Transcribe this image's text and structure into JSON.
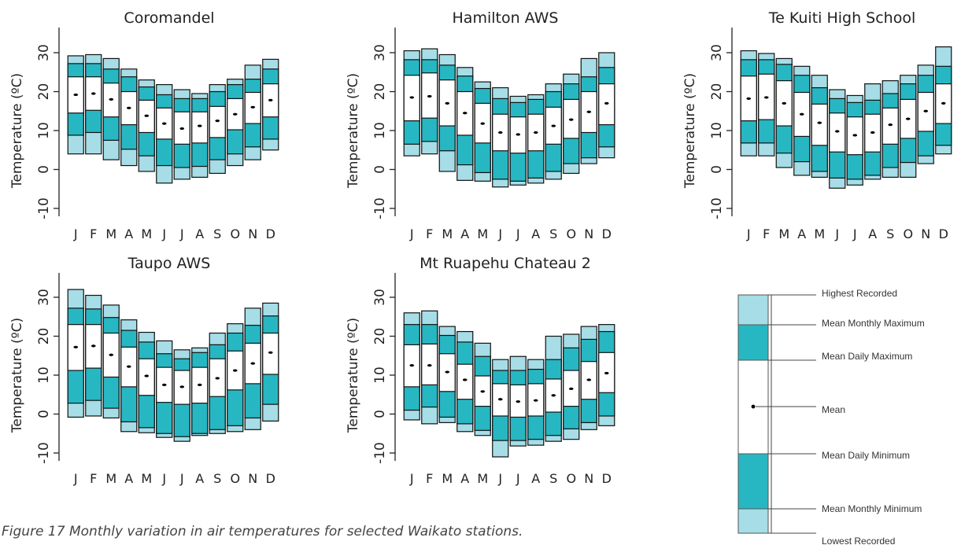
{
  "caption": "Figure 17 Monthly variation in air temperatures for selected Waikato stations.",
  "colors": {
    "record_band": "#a6dde6",
    "monthly_band": "#27b7c2",
    "daily_band": "#ffffff",
    "outline": "#111111",
    "mean_marker": "#000000"
  },
  "legend": {
    "labels": [
      "Highest Recorded",
      "Mean Monthly Maximum",
      "Mean Daily Maximum",
      "Mean",
      "Mean Daily Minimum",
      "Mean Monthly Minimum",
      "Lowest Recorded"
    ]
  },
  "chart_data": [
    {
      "type": "box",
      "title": "Coromandel",
      "ylabel": "Temperature (ºC)",
      "ylim": [
        -10,
        35
      ],
      "yticks": [
        "-10",
        "0",
        "10",
        "20",
        "30"
      ],
      "categories": [
        "J",
        "F",
        "M",
        "A",
        "M",
        "J",
        "J",
        "A",
        "S",
        "O",
        "N",
        "D"
      ],
      "highest_recorded": [
        29.2,
        29.5,
        28.5,
        25.8,
        23.0,
        21.8,
        20.5,
        19.5,
        21.8,
        23.2,
        26.8,
        28.3
      ],
      "mean_monthly_max": [
        27.2,
        27.2,
        25.8,
        23.8,
        21.2,
        19.2,
        18.2,
        18.2,
        20.0,
        21.8,
        23.2,
        25.8
      ],
      "mean_daily_max": [
        23.8,
        23.8,
        22.2,
        20.0,
        17.8,
        15.8,
        14.8,
        14.8,
        16.2,
        18.2,
        19.8,
        22.0
      ],
      "mean": [
        19.2,
        19.5,
        18.0,
        15.8,
        13.8,
        11.8,
        10.5,
        11.2,
        12.5,
        14.2,
        16.0,
        17.8
      ],
      "mean_daily_min": [
        14.5,
        15.2,
        13.5,
        11.5,
        9.5,
        7.8,
        6.5,
        6.8,
        8.2,
        10.2,
        11.8,
        13.5
      ],
      "mean_monthly_min": [
        8.8,
        9.5,
        7.5,
        5.2,
        3.5,
        1.0,
        0.5,
        0.8,
        2.5,
        4.0,
        5.8,
        7.8
      ],
      "lowest_recorded": [
        4.0,
        4.0,
        2.5,
        1.0,
        -0.5,
        -3.5,
        -2.5,
        -2.0,
        -1.0,
        1.0,
        2.5,
        5.0
      ]
    },
    {
      "type": "box",
      "title": "Hamilton AWS",
      "ylabel": "Temperature (ºC)",
      "ylim": [
        -10,
        35
      ],
      "yticks": [
        "-10",
        "0",
        "10",
        "20",
        "30"
      ],
      "categories": [
        "J",
        "F",
        "M",
        "A",
        "M",
        "J",
        "J",
        "A",
        "S",
        "O",
        "N",
        "D"
      ],
      "highest_recorded": [
        30.5,
        31.0,
        29.5,
        26.2,
        22.5,
        21.0,
        18.8,
        19.2,
        22.0,
        24.5,
        28.5,
        30.0
      ],
      "mean_monthly_max": [
        28.2,
        28.2,
        26.8,
        24.0,
        20.8,
        18.2,
        17.2,
        18.0,
        20.0,
        22.0,
        23.8,
        26.2
      ],
      "mean_daily_max": [
        24.2,
        24.8,
        23.0,
        20.0,
        17.0,
        14.2,
        13.5,
        14.2,
        16.0,
        18.0,
        20.0,
        22.0
      ],
      "mean": [
        18.5,
        18.8,
        17.0,
        14.5,
        11.8,
        9.5,
        9.0,
        9.5,
        11.2,
        12.8,
        14.8,
        17.0
      ],
      "mean_daily_min": [
        12.5,
        13.2,
        11.2,
        8.8,
        6.8,
        4.8,
        4.2,
        4.8,
        6.5,
        8.0,
        9.5,
        11.5
      ],
      "mean_monthly_min": [
        6.5,
        7.2,
        4.8,
        1.2,
        -0.8,
        -2.5,
        -3.0,
        -2.2,
        -0.5,
        1.5,
        3.0,
        5.8
      ],
      "lowest_recorded": [
        3.5,
        4.0,
        -0.5,
        -2.8,
        -3.0,
        -4.5,
        -4.0,
        -3.5,
        -2.5,
        -1.0,
        1.5,
        3.0
      ]
    },
    {
      "type": "box",
      "title": "Te Kuiti High School",
      "ylabel": "Temperature (ºC)",
      "ylim": [
        -10,
        35
      ],
      "yticks": [
        "-10",
        "0",
        "10",
        "20",
        "30"
      ],
      "categories": [
        "J",
        "F",
        "M",
        "A",
        "M",
        "J",
        "J",
        "A",
        "S",
        "O",
        "N",
        "D"
      ],
      "highest_recorded": [
        30.5,
        29.8,
        28.5,
        26.5,
        24.2,
        20.5,
        19.0,
        22.0,
        22.8,
        24.2,
        26.8,
        31.5
      ],
      "mean_monthly_max": [
        28.2,
        28.2,
        27.0,
        24.2,
        21.0,
        18.2,
        17.2,
        17.8,
        19.5,
        22.0,
        24.2,
        26.5
      ],
      "mean_daily_max": [
        24.0,
        24.5,
        22.8,
        19.8,
        16.8,
        14.5,
        13.5,
        14.2,
        15.8,
        18.0,
        19.8,
        22.0
      ],
      "mean": [
        18.2,
        18.5,
        17.0,
        14.2,
        12.0,
        9.8,
        8.8,
        9.5,
        11.5,
        13.0,
        15.0,
        17.0
      ],
      "mean_daily_min": [
        12.5,
        12.8,
        11.2,
        8.5,
        6.2,
        4.5,
        3.8,
        4.5,
        6.5,
        8.0,
        9.8,
        11.8
      ],
      "mean_monthly_min": [
        6.8,
        6.8,
        4.2,
        2.0,
        -0.5,
        -2.2,
        -2.5,
        -1.5,
        0.5,
        1.8,
        3.5,
        6.2
      ],
      "lowest_recorded": [
        3.5,
        3.5,
        0.5,
        -1.5,
        -2.0,
        -4.8,
        -4.0,
        -2.5,
        -2.0,
        -2.0,
        1.5,
        4.0
      ]
    },
    {
      "type": "box",
      "title": "Taupo AWS",
      "ylabel": "Temperature (ºC)",
      "ylim": [
        -10,
        35
      ],
      "yticks": [
        "-10",
        "0",
        "10",
        "20",
        "30"
      ],
      "categories": [
        "J",
        "F",
        "M",
        "A",
        "M",
        "J",
        "J",
        "A",
        "S",
        "O",
        "N",
        "D"
      ],
      "highest_recorded": [
        32.0,
        30.5,
        28.0,
        24.2,
        21.0,
        18.8,
        16.5,
        17.0,
        20.8,
        23.2,
        27.2,
        28.5
      ],
      "mean_monthly_max": [
        27.2,
        27.0,
        24.8,
        21.5,
        18.5,
        15.5,
        14.2,
        15.8,
        17.8,
        20.8,
        22.8,
        25.2
      ],
      "mean_daily_max": [
        23.0,
        23.0,
        20.8,
        17.2,
        14.2,
        12.0,
        11.2,
        12.0,
        14.2,
        16.2,
        18.2,
        20.8
      ],
      "mean": [
        17.2,
        17.5,
        15.2,
        12.2,
        9.8,
        7.5,
        7.0,
        7.5,
        9.2,
        11.2,
        13.0,
        15.8
      ],
      "mean_daily_min": [
        11.2,
        11.8,
        9.5,
        7.0,
        4.8,
        3.0,
        2.5,
        2.8,
        4.5,
        6.2,
        7.8,
        10.2
      ],
      "mean_monthly_min": [
        2.8,
        3.5,
        1.5,
        -2.0,
        -3.5,
        -5.0,
        -5.8,
        -5.0,
        -4.0,
        -3.0,
        -1.0,
        2.5
      ],
      "lowest_recorded": [
        -0.8,
        -0.5,
        -1.0,
        -4.5,
        -4.8,
        -6.0,
        -7.0,
        -5.5,
        -5.0,
        -4.5,
        -4.0,
        -1.8
      ]
    },
    {
      "type": "box",
      "title": "Mt Ruapehu Chateau 2",
      "ylabel": "Temperature (ºC)",
      "ylim": [
        -10,
        35
      ],
      "yticks": [
        "-10",
        "0",
        "10",
        "20",
        "30"
      ],
      "categories": [
        "J",
        "F",
        "M",
        "A",
        "M",
        "J",
        "J",
        "A",
        "S",
        "O",
        "N",
        "D"
      ],
      "highest_recorded": [
        26.0,
        26.5,
        22.5,
        21.2,
        18.2,
        14.0,
        14.8,
        14.0,
        20.0,
        20.5,
        22.5,
        23.0
      ],
      "mean_monthly_max": [
        23.0,
        23.0,
        20.2,
        18.5,
        14.8,
        11.2,
        11.2,
        11.5,
        14.0,
        17.0,
        19.2,
        21.2
      ],
      "mean_daily_max": [
        17.8,
        18.0,
        15.5,
        12.8,
        9.8,
        7.8,
        7.5,
        7.8,
        9.0,
        11.2,
        13.5,
        15.8
      ],
      "mean": [
        12.5,
        12.5,
        10.8,
        8.8,
        5.8,
        3.8,
        3.2,
        3.5,
        4.8,
        6.5,
        8.8,
        10.5
      ],
      "mean_daily_min": [
        7.0,
        7.5,
        5.8,
        3.8,
        2.0,
        -0.5,
        -0.8,
        -0.5,
        0.5,
        2.0,
        3.8,
        5.5
      ],
      "mean_monthly_min": [
        1.0,
        1.8,
        -0.8,
        -2.5,
        -4.2,
        -6.8,
        -6.8,
        -6.5,
        -5.5,
        -3.8,
        -2.2,
        -0.5
      ],
      "lowest_recorded": [
        -1.5,
        -2.5,
        -2.2,
        -4.5,
        -5.5,
        -11.0,
        -8.2,
        -8.0,
        -7.0,
        -6.5,
        -4.0,
        -3.0
      ]
    }
  ]
}
